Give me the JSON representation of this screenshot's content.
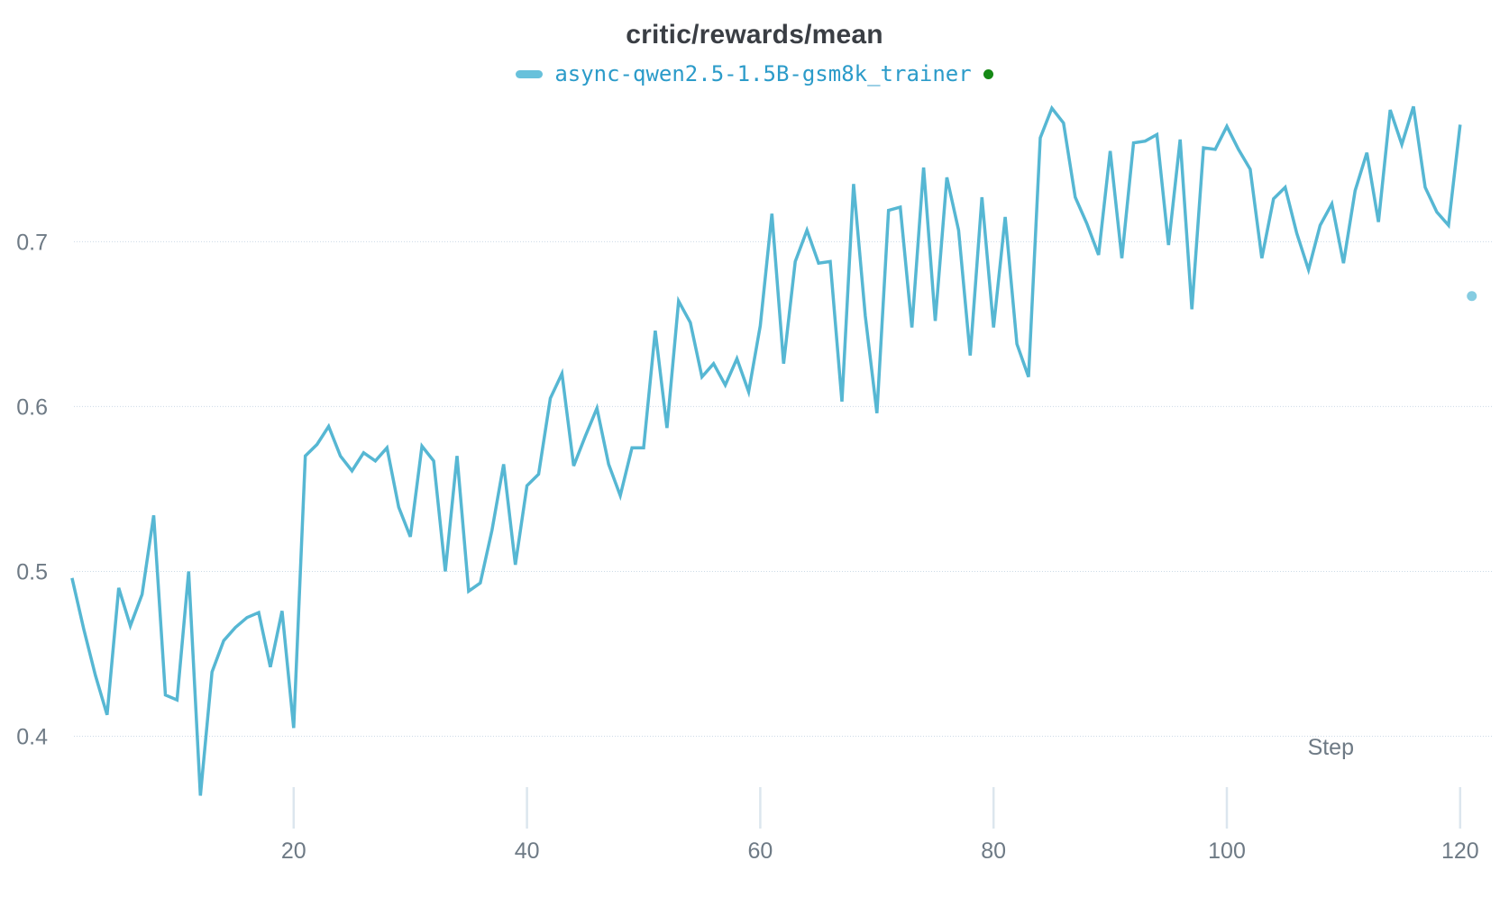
{
  "chart": {
    "legend": {
      "series_label": "async-qwen2.5-1.5B-gsm8k_trainer"
    }
  },
  "colors": {
    "line": "#56b7d3",
    "detached_point": "#85cce1",
    "legend_swatch": "#68c1db",
    "legend_text": "#2b9bc9",
    "status_dot_green": "#158915",
    "title_text": "#3a3e44",
    "axis_text": "#6e7a85",
    "gridline": "#ccdae6",
    "tick_mark": "#dce6ee"
  },
  "chart_data": {
    "type": "line",
    "title": "critic/rewards/mean",
    "xlabel": "Step",
    "ylabel": "",
    "grid": "horizontal-dotted",
    "legend_position": "top-center",
    "x_ticks": [
      20,
      40,
      60,
      80,
      100,
      120
    ],
    "y_ticks": [
      0.4,
      0.5,
      0.6,
      0.7
    ],
    "xlim": [
      0,
      122.8
    ],
    "ylim": [
      0.344,
      0.792
    ],
    "series": [
      {
        "name": "async-qwen2.5-1.5B-gsm8k_trainer",
        "color": "#56b7d3",
        "x_start": 1,
        "x_step": 1,
        "values": [
          0.496,
          0.465,
          0.437,
          0.413,
          0.49,
          0.467,
          0.486,
          0.534,
          0.425,
          0.422,
          0.5,
          0.364,
          0.439,
          0.458,
          0.466,
          0.472,
          0.475,
          0.442,
          0.476,
          0.405,
          0.57,
          0.577,
          0.588,
          0.57,
          0.561,
          0.572,
          0.567,
          0.575,
          0.539,
          0.521,
          0.576,
          0.567,
          0.5,
          0.57,
          0.488,
          0.493,
          0.525,
          0.565,
          0.504,
          0.552,
          0.559,
          0.605,
          0.62,
          0.564,
          0.582,
          0.599,
          0.565,
          0.546,
          0.575,
          0.575,
          0.646,
          0.587,
          0.664,
          0.651,
          0.618,
          0.626,
          0.613,
          0.629,
          0.609,
          0.649,
          0.717,
          0.626,
          0.688,
          0.707,
          0.687,
          0.688,
          0.603,
          0.735,
          0.655,
          0.596,
          0.719,
          0.721,
          0.648,
          0.745,
          0.652,
          0.739,
          0.707,
          0.631,
          0.727,
          0.648,
          0.715,
          0.638,
          0.618,
          0.763,
          0.781,
          0.772,
          0.727,
          0.711,
          0.692,
          0.755,
          0.69,
          0.76,
          0.761,
          0.765,
          0.698,
          0.762,
          0.659,
          0.757,
          0.756,
          0.77,
          0.756,
          0.744,
          0.69,
          0.726,
          0.733,
          0.705,
          0.683,
          0.71,
          0.723,
          0.687,
          0.731,
          0.754,
          0.712,
          0.78,
          0.759,
          0.782,
          0.733,
          0.718,
          0.71,
          0.771
        ]
      }
    ],
    "detached_point": {
      "x": 121,
      "y": 0.667
    }
  }
}
